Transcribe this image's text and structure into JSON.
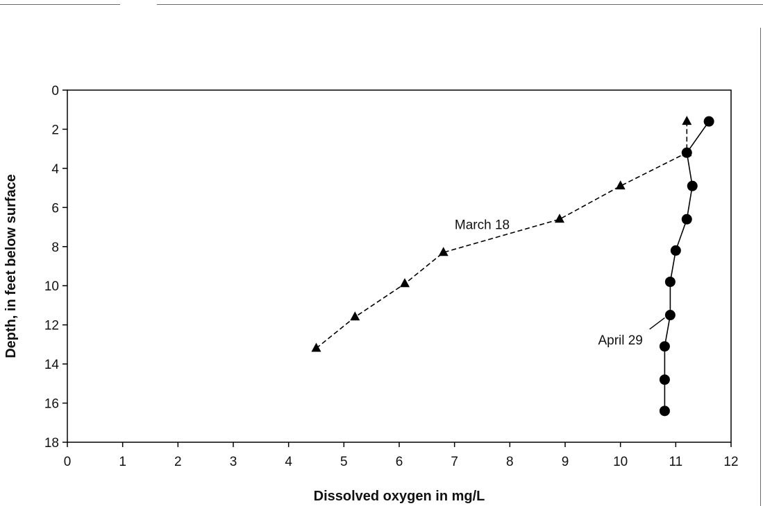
{
  "chart_data": {
    "type": "line",
    "title": "",
    "xlabel": "Dissolved oxygen in mg/L",
    "ylabel": "Depth, in feet below surface",
    "xlim": [
      0,
      12
    ],
    "ylim": [
      0,
      18
    ],
    "y_inverted": true,
    "x_ticks": [
      0,
      1,
      2,
      3,
      4,
      5,
      6,
      7,
      8,
      9,
      10,
      11,
      12
    ],
    "y_ticks": [
      0,
      2,
      4,
      6,
      8,
      10,
      12,
      14,
      16,
      18
    ],
    "grid": false,
    "legend": "none",
    "series": [
      {
        "name": "March 18",
        "marker": "triangle",
        "line_style": "dashed",
        "color": "#000000",
        "x": [
          11.2,
          11.2,
          10.0,
          8.9,
          6.8,
          6.1,
          5.2,
          4.5
        ],
        "y": [
          1.6,
          3.2,
          4.9,
          6.6,
          8.3,
          9.9,
          11.6,
          13.2
        ]
      },
      {
        "name": "April 29",
        "marker": "circle",
        "line_style": "solid",
        "color": "#000000",
        "x": [
          11.6,
          11.2,
          11.3,
          11.2,
          11.0,
          10.9,
          10.9,
          10.8,
          10.8,
          10.8
        ],
        "y": [
          1.6,
          3.2,
          4.9,
          6.6,
          8.2,
          9.8,
          11.5,
          13.1,
          14.8,
          16.4
        ]
      }
    ],
    "annotations": [
      {
        "text": "March 18",
        "x": 7.5,
        "y": 7.1
      },
      {
        "text": "April 29",
        "x": 10.0,
        "y": 13.0
      }
    ]
  }
}
